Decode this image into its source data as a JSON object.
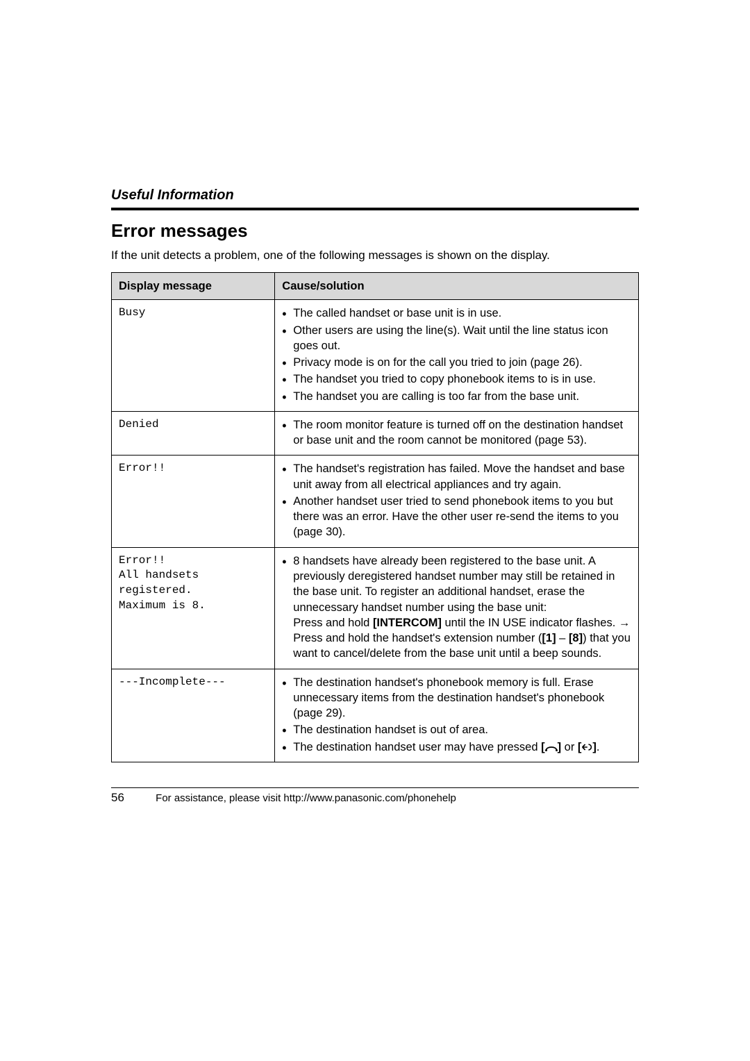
{
  "header": {
    "section": "Useful Information"
  },
  "title": "Error messages",
  "intro": "If the unit detects a problem, one of the following messages is shown on the display.",
  "table": {
    "headers": [
      "Display message",
      "Cause/solution"
    ],
    "rows": [
      {
        "msg": "Busy",
        "causes": [
          "The called handset or base unit is in use.",
          "Other users are using the line(s). Wait until the line status icon goes out.",
          "Privacy mode is on for the call you tried to join (page 26).",
          "The handset you tried to copy phonebook items to is in use.",
          "The handset you are calling is too far from the base unit."
        ]
      },
      {
        "msg": "Denied",
        "causes": [
          "The room monitor feature is turned off on the destination handset or base unit and the room cannot be monitored (page 53)."
        ]
      },
      {
        "msg": "Error!!",
        "causes": [
          "The handset's registration has failed. Move the handset and base unit away from all electrical appliances and try again.",
          "Another handset user tried to send phonebook items to you but there was an error. Have the other user re-send the items to you (page 30)."
        ]
      },
      {
        "msg": "Error!!\nAll handsets\nregistered.\nMaximum is 8.",
        "causes_html": [
          "8 handsets have already been registered to the base unit. A previously deregistered handset number may still be retained in the base unit. To register an additional handset, erase the unnecessary handset number using the base unit:<br>Press and hold <b>[INTERCOM]</b> until the IN USE indicator flashes. &rarr; Press and hold the handset's extension number (<b>[1]</b> – <b>[8]</b>) that you want to cancel/delete from the base unit until a beep sounds."
        ]
      },
      {
        "msg": "---Incomplete---",
        "causes_html": [
          "The destination handset's phonebook memory is full. Erase unnecessary items from the destination handset's phonebook (page 29).",
          "The destination handset is out of area.",
          "The destination handset user may have pressed <b>[<svg class='icon' width='18' height='12' viewBox='0 0 24 16'><path d='M2 14 C2 6 22 6 22 14' stroke='#000' stroke-width='2.2' fill='none'/><circle cx='2' cy='14' r='2' fill='#000'/><circle cx='22' cy='14' r='2' fill='#000'/></svg>]</b> or <b>[<svg class='icon' width='16' height='14' viewBox='0 0 20 16'><path d='M2 8 l5 -5 M2 8 l5 5 M2 8 h9' stroke='#000' stroke-width='2' fill='none'/><path d='M13 3 a5 5 0 0 1 0 10' stroke='#000' stroke-width='2' fill='none'/></svg>]</b>."
        ]
      }
    ]
  },
  "footer": {
    "page_number": "56",
    "text": "For assistance, please visit http://www.panasonic.com/phonehelp"
  },
  "colors": {
    "header_row_bg": "#d8d8d8",
    "text": "#000000",
    "background": "#ffffff"
  }
}
